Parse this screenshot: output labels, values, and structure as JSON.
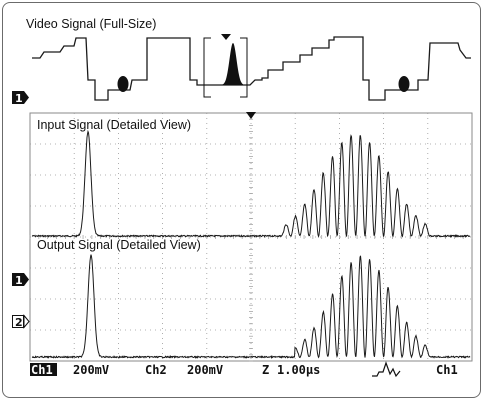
{
  "top_panel": {
    "title": "Video Signal (Full-Size)"
  },
  "main_panel": {
    "input_label": "Input Signal (Detailed View)",
    "output_label": "Output Signal (Detailed View)"
  },
  "markers": {
    "ch1": "1",
    "ch2": "2"
  },
  "status_bar": {
    "ch1_badge": "Ch1",
    "ch1_scale": "200mV",
    "ch2_label": "Ch2",
    "ch2_scale": "200mV",
    "timebase_symbol": "Z",
    "timebase": "1.00µs",
    "trigger_source": "Ch1"
  },
  "colors": {
    "trace": "#1a1a1a",
    "grid": "#9a9a9a",
    "frame": "#6b6b6b"
  }
}
